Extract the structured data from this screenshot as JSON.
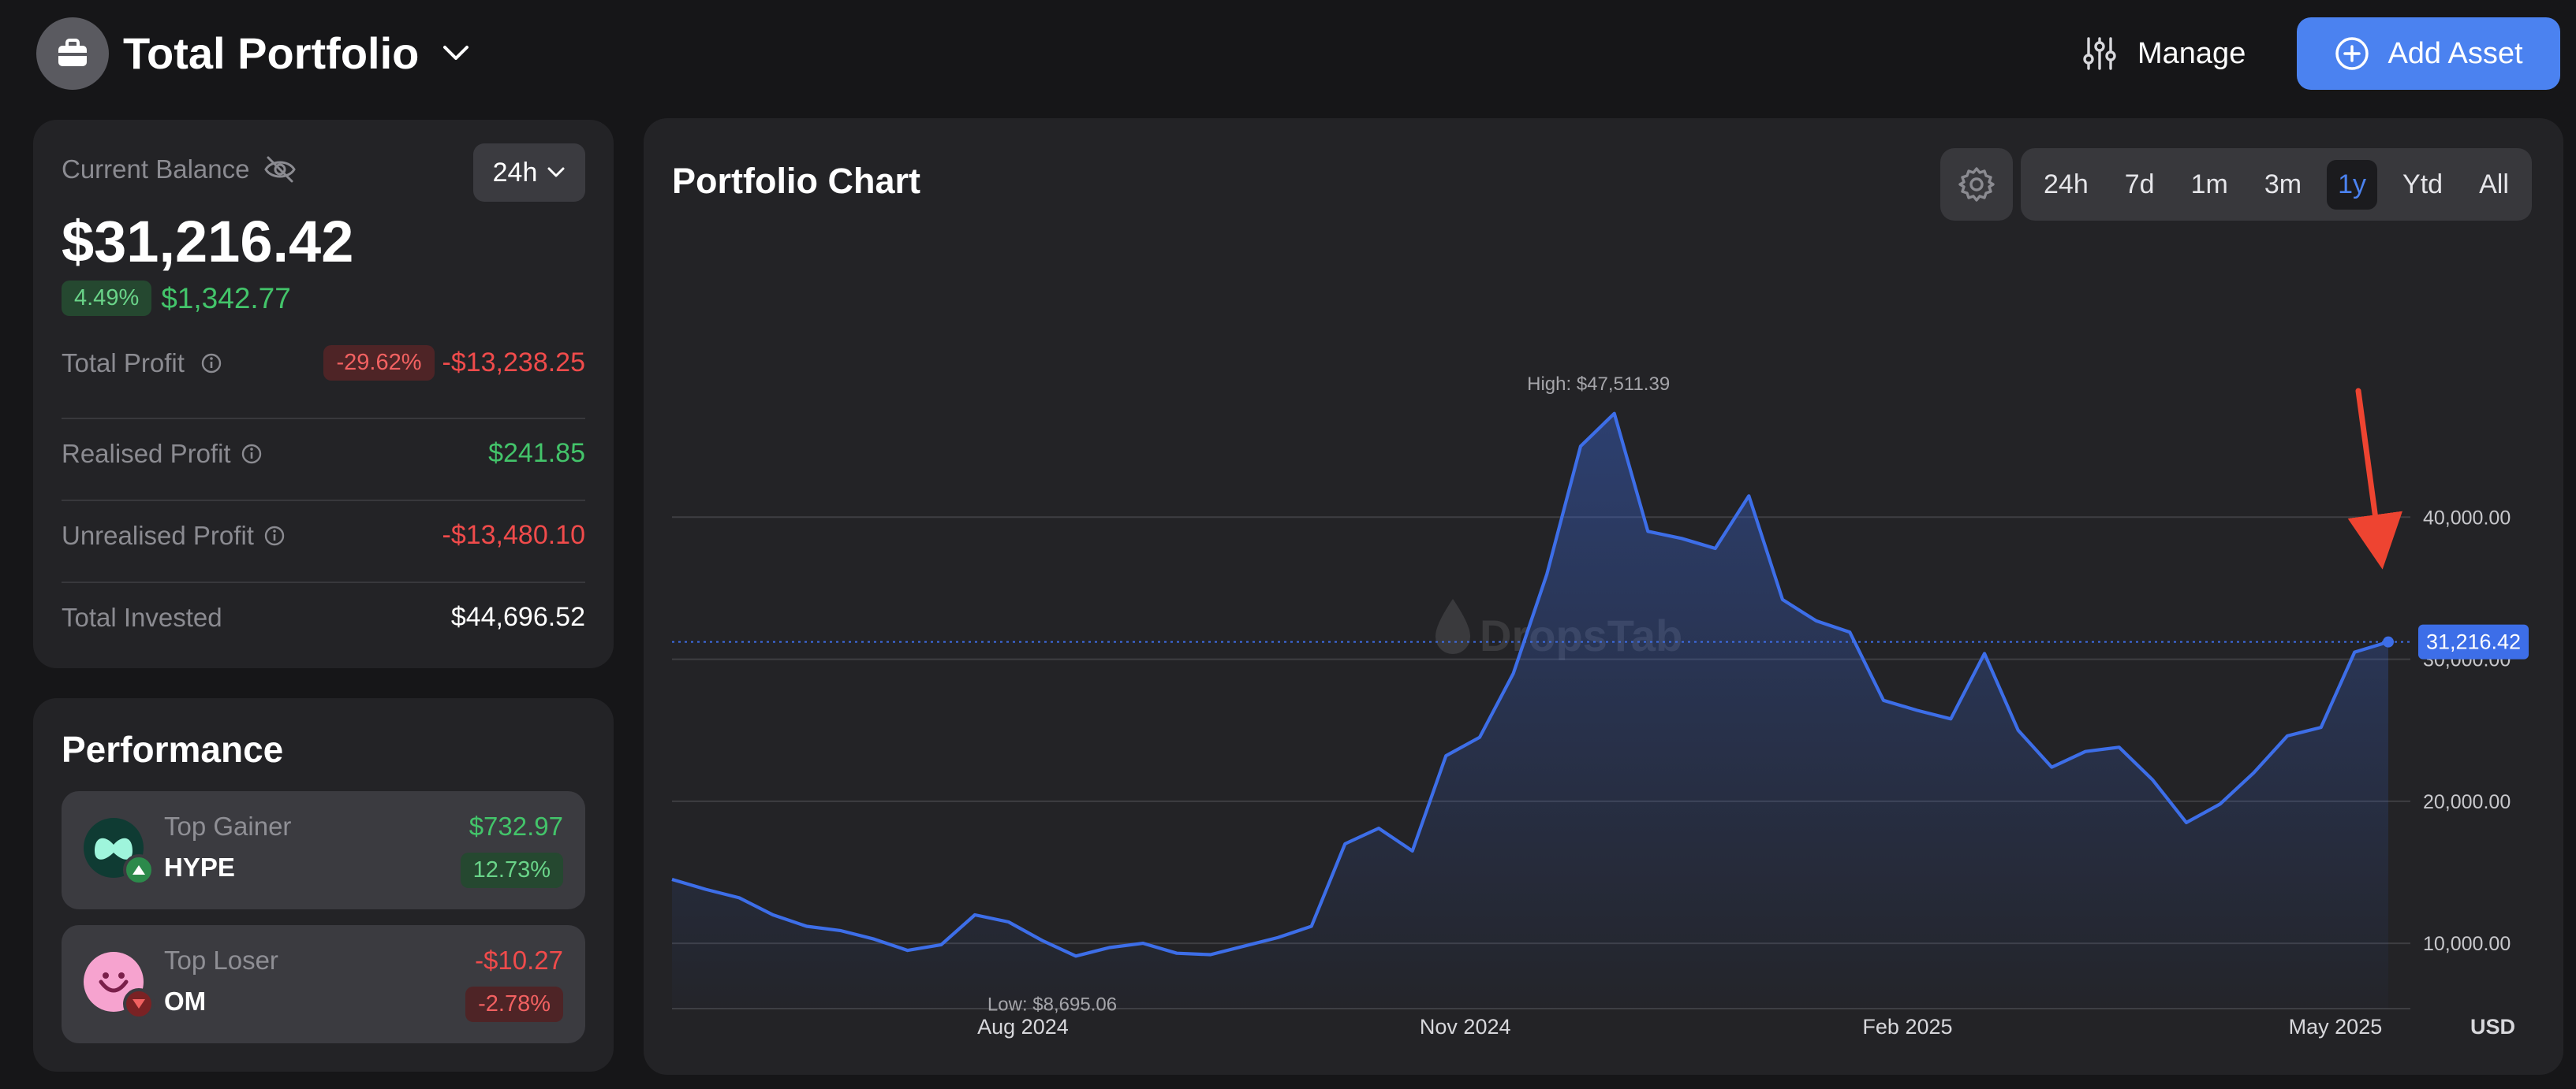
{
  "header": {
    "title": "Total Portfolio",
    "manage_label": "Manage",
    "add_asset_label": "Add Asset"
  },
  "balance": {
    "label": "Current Balance",
    "period": "24h",
    "value": "$31,216.42",
    "change_pct": "4.49%",
    "change_abs": "$1,342.77",
    "rows": [
      {
        "label": "Total Profit",
        "pct": "-29.62%",
        "value": "-$13,238.25"
      },
      {
        "label": "Realised Profit",
        "value": "$241.85"
      },
      {
        "label": "Unrealised Profit",
        "value": "-$13,480.10"
      },
      {
        "label": "Total Invested",
        "value": "$44,696.52"
      }
    ]
  },
  "performance": {
    "title": "Performance",
    "gainer": {
      "label": "Top Gainer",
      "symbol": "HYPE",
      "value": "$732.97",
      "pct": "12.73%"
    },
    "loser": {
      "label": "Top Loser",
      "symbol": "OM",
      "value": "-$10.27",
      "pct": "-2.78%"
    }
  },
  "chart": {
    "title": "Portfolio Chart",
    "ranges": [
      "24h",
      "7d",
      "1m",
      "3m",
      "1y",
      "Ytd",
      "All"
    ],
    "active_range": "1y",
    "watermark": "DropsTab",
    "currency": "USD",
    "high_label": "High: $47,511.39",
    "low_label": "Low: $8,695.06",
    "current_label": "31,216.42"
  },
  "chart_data": {
    "type": "area",
    "title": "Portfolio Chart",
    "xlabel": "",
    "ylabel": "USD",
    "x_ticks": [
      "Aug 2024",
      "Nov 2024",
      "Feb 2025",
      "May 2025"
    ],
    "y_ticks": [
      10000,
      20000,
      30000,
      40000
    ],
    "ylim": [
      5400,
      52000
    ],
    "high": 47511.39,
    "low": 8695.06,
    "current": 31216.42,
    "grid": true,
    "line_color": "#3d6ee8",
    "series": [
      {
        "x": [
          "2024-06-03",
          "2024-06-10",
          "2024-06-17",
          "2024-06-24",
          "2024-07-01",
          "2024-07-08",
          "2024-07-15",
          "2024-07-22",
          "2024-07-29",
          "2024-08-05",
          "2024-08-12",
          "2024-08-19",
          "2024-08-26",
          "2024-09-02",
          "2024-09-09",
          "2024-09-16",
          "2024-09-23",
          "2024-09-30",
          "2024-10-07",
          "2024-10-14",
          "2024-10-21",
          "2024-10-28",
          "2024-11-04",
          "2024-11-11",
          "2024-11-18",
          "2024-11-25",
          "2024-12-02",
          "2024-12-09",
          "2024-12-16",
          "2024-12-23",
          "2024-12-30",
          "2025-01-06",
          "2025-01-13",
          "2025-01-20",
          "2025-01-27",
          "2025-02-03",
          "2025-02-10",
          "2025-02-17",
          "2025-02-24",
          "2025-03-03",
          "2025-03-10",
          "2025-03-17",
          "2025-03-24",
          "2025-03-31",
          "2025-04-07",
          "2025-04-14",
          "2025-04-21",
          "2025-04-28",
          "2025-05-05",
          "2025-05-12",
          "2025-05-19",
          "2025-05-26"
        ],
        "values": [
          14500,
          13800,
          13200,
          12000,
          11200,
          10900,
          10300,
          9500,
          9900,
          12000,
          11500,
          10200,
          9100,
          9700,
          10000,
          9300,
          9200,
          9800,
          10400,
          11200,
          17000,
          18100,
          16500,
          23200,
          24500,
          29000,
          36000,
          45000,
          47300,
          39000,
          38500,
          37800,
          41500,
          34200,
          32700,
          31900,
          27100,
          26400,
          25800,
          30400,
          25000,
          22400,
          23500,
          23800,
          21500,
          18500,
          19800,
          22000,
          24600,
          25200,
          30500,
          31216
        ]
      }
    ]
  },
  "colors": {
    "accent": "#4b82f0",
    "profit": "#43c46a",
    "loss": "#f04b4b",
    "annotation_arrow": "#ee4431"
  }
}
